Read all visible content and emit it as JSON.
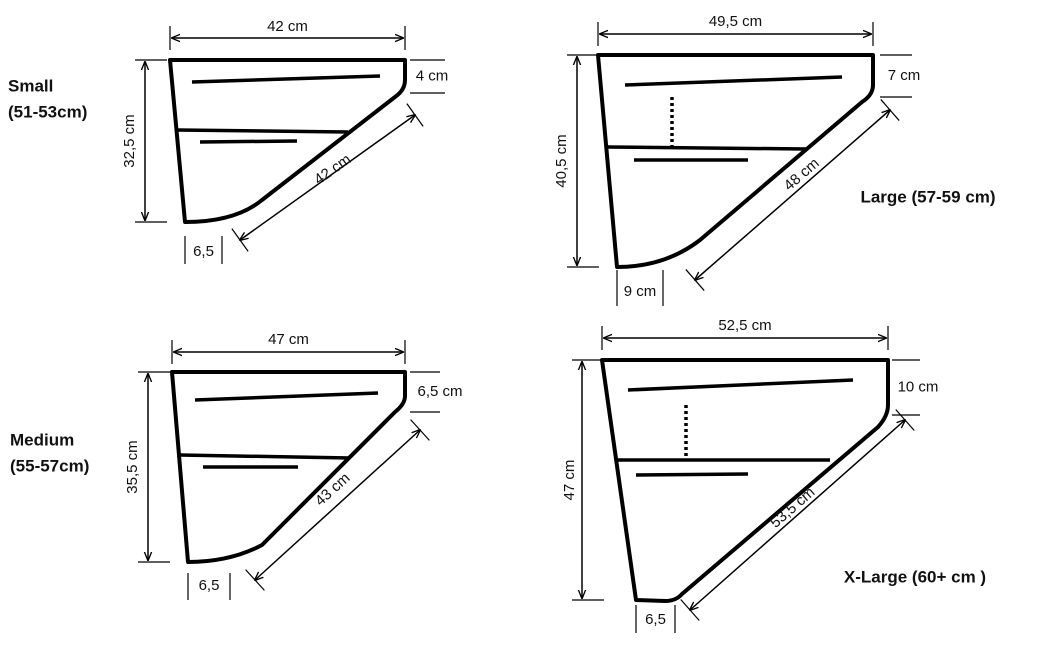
{
  "pieces": [
    {
      "size": [
        "Small",
        "(51-53cm)"
      ],
      "top": "42 cm",
      "side": "4 cm",
      "diagonal": "42 cm",
      "height": "32,5 cm",
      "bottom": "6,5"
    },
    {
      "size": [
        "Large (57-59 cm)"
      ],
      "top": "49,5 cm",
      "side": "7 cm",
      "diagonal": "48 cm",
      "height": "40,5 cm",
      "bottom": "9 cm"
    },
    {
      "size": [
        "Medium",
        "(55-57cm)"
      ],
      "top": "47 cm",
      "side": "6,5 cm",
      "diagonal": "43 cm",
      "height": "35,5 cm",
      "bottom": "6,5"
    },
    {
      "size": [
        "X-Large (60+ cm )"
      ],
      "top": "52,5 cm",
      "side": "10 cm",
      "diagonal": "53,5 cm",
      "height": "47 cm",
      "bottom": "6,5"
    }
  ]
}
